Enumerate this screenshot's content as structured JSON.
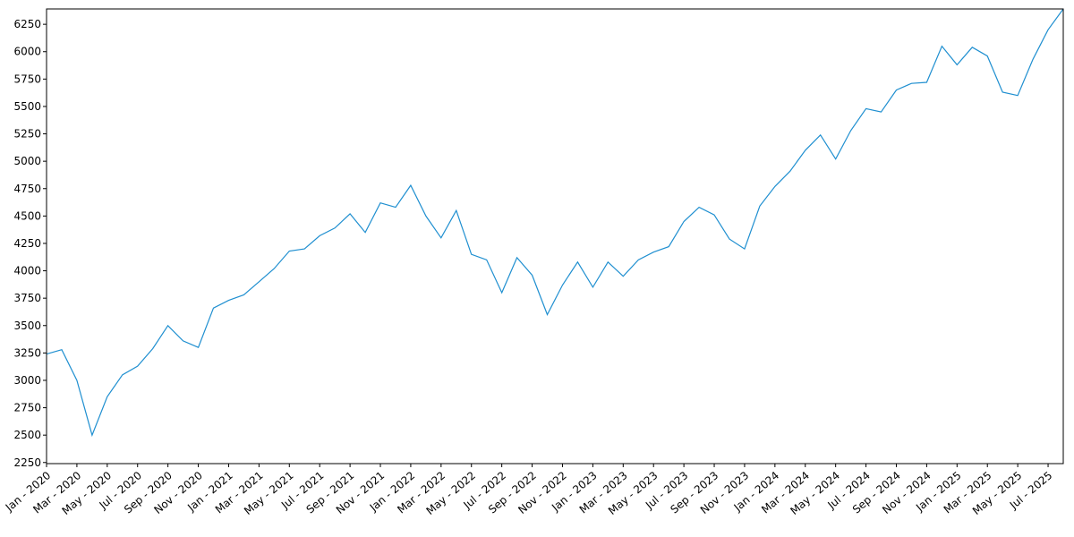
{
  "chart_data": {
    "type": "line",
    "x": [
      "2020-01",
      "2020-02",
      "2020-03",
      "2020-04",
      "2020-05",
      "2020-06",
      "2020-07",
      "2020-08",
      "2020-09",
      "2020-10",
      "2020-11",
      "2020-12",
      "2021-01",
      "2021-02",
      "2021-03",
      "2021-04",
      "2021-05",
      "2021-06",
      "2021-07",
      "2021-08",
      "2021-09",
      "2021-10",
      "2021-11",
      "2021-12",
      "2022-01",
      "2022-02",
      "2022-03",
      "2022-04",
      "2022-05",
      "2022-06",
      "2022-07",
      "2022-08",
      "2022-09",
      "2022-10",
      "2022-11",
      "2022-12",
      "2023-01",
      "2023-02",
      "2023-03",
      "2023-04",
      "2023-05",
      "2023-06",
      "2023-07",
      "2023-08",
      "2023-09",
      "2023-10",
      "2023-11",
      "2023-12",
      "2024-01",
      "2024-02",
      "2024-03",
      "2024-04",
      "2024-05",
      "2024-06",
      "2024-07",
      "2024-08",
      "2024-09",
      "2024-10",
      "2024-11",
      "2024-12",
      "2025-01",
      "2025-02",
      "2025-03",
      "2025-04",
      "2025-05",
      "2025-06",
      "2025-07",
      "2025-08"
    ],
    "values": [
      3240,
      3280,
      3000,
      2500,
      2850,
      3050,
      3130,
      3290,
      3500,
      3360,
      3300,
      3660,
      3730,
      3780,
      3900,
      4020,
      4180,
      4200,
      4320,
      4390,
      4520,
      4350,
      4620,
      4580,
      4780,
      4500,
      4300,
      4550,
      4150,
      4100,
      3800,
      4120,
      3960,
      3600,
      3870,
      4080,
      3850,
      4080,
      3950,
      4100,
      4170,
      4220,
      4450,
      4580,
      4510,
      4290,
      4200,
      4590,
      4770,
      4910,
      5100,
      5240,
      5020,
      5280,
      5480,
      5450,
      5650,
      5710,
      5720,
      6050,
      5880,
      6040,
      5960,
      5630,
      5600,
      5930,
      6200,
      6390
    ],
    "color": "#1f8fd0",
    "xlim": [
      "2020-01",
      "2025-08"
    ],
    "xticks": [
      {
        "value": "2020-01",
        "label": "Jan - 2020"
      },
      {
        "value": "2020-03",
        "label": "Mar - 2020"
      },
      {
        "value": "2020-05",
        "label": "May - 2020"
      },
      {
        "value": "2020-07",
        "label": "Jul - 2020"
      },
      {
        "value": "2020-09",
        "label": "Sep - 2020"
      },
      {
        "value": "2020-11",
        "label": "Nov - 2020"
      },
      {
        "value": "2021-01",
        "label": "Jan - 2021"
      },
      {
        "value": "2021-03",
        "label": "Mar - 2021"
      },
      {
        "value": "2021-05",
        "label": "May - 2021"
      },
      {
        "value": "2021-07",
        "label": "Jul - 2021"
      },
      {
        "value": "2021-09",
        "label": "Sep - 2021"
      },
      {
        "value": "2021-11",
        "label": "Nov - 2021"
      },
      {
        "value": "2022-01",
        "label": "Jan - 2022"
      },
      {
        "value": "2022-03",
        "label": "Mar - 2022"
      },
      {
        "value": "2022-05",
        "label": "May - 2022"
      },
      {
        "value": "2022-07",
        "label": "Jul - 2022"
      },
      {
        "value": "2022-09",
        "label": "Sep - 2022"
      },
      {
        "value": "2022-11",
        "label": "Nov - 2022"
      },
      {
        "value": "2023-01",
        "label": "Jan - 2023"
      },
      {
        "value": "2023-03",
        "label": "Mar - 2023"
      },
      {
        "value": "2023-05",
        "label": "May - 2023"
      },
      {
        "value": "2023-07",
        "label": "Jul - 2023"
      },
      {
        "value": "2023-09",
        "label": "Sep - 2023"
      },
      {
        "value": "2023-11",
        "label": "Nov - 2023"
      },
      {
        "value": "2024-01",
        "label": "Jan - 2024"
      },
      {
        "value": "2024-03",
        "label": "Mar - 2024"
      },
      {
        "value": "2024-05",
        "label": "May - 2024"
      },
      {
        "value": "2024-07",
        "label": "Jul - 2024"
      },
      {
        "value": "2024-09",
        "label": "Sep - 2024"
      },
      {
        "value": "2024-11",
        "label": "Nov - 2024"
      },
      {
        "value": "2025-01",
        "label": "Jan - 2025"
      },
      {
        "value": "2025-03",
        "label": "Mar - 2025"
      },
      {
        "value": "2025-05",
        "label": "May - 2025"
      },
      {
        "value": "2025-07",
        "label": "Jul - 2025"
      }
    ],
    "ylim": [
      2240,
      6390
    ],
    "yticks": [
      2250,
      2500,
      2750,
      3000,
      3250,
      3500,
      3750,
      4000,
      4250,
      4500,
      4750,
      5000,
      5250,
      5500,
      5750,
      6000,
      6250
    ]
  }
}
